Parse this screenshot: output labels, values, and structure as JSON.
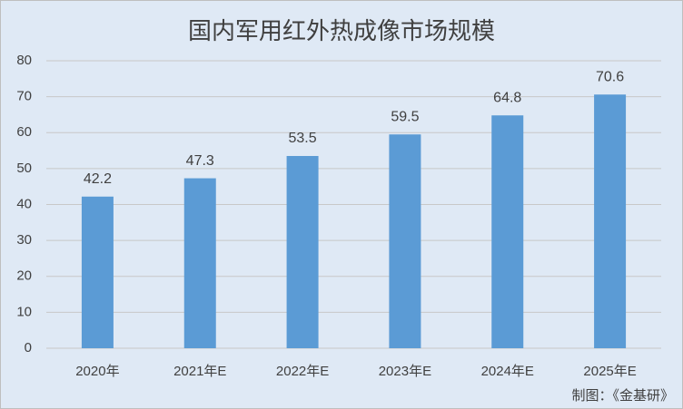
{
  "chart_data": {
    "type": "bar",
    "title": "国内军用红外热成像市场规模",
    "categories": [
      "2020年",
      "2021年E",
      "2022年E",
      "2023年E",
      "2024年E",
      "2025年E"
    ],
    "values": [
      42.2,
      47.3,
      53.5,
      59.5,
      64.8,
      70.6
    ],
    "color": "#5b9bd5",
    "ylim": [
      0,
      80
    ],
    "yticks": [
      0,
      10,
      20,
      30,
      40,
      50,
      60,
      70,
      80
    ],
    "grid": true,
    "source": "制图：《金基研》"
  }
}
